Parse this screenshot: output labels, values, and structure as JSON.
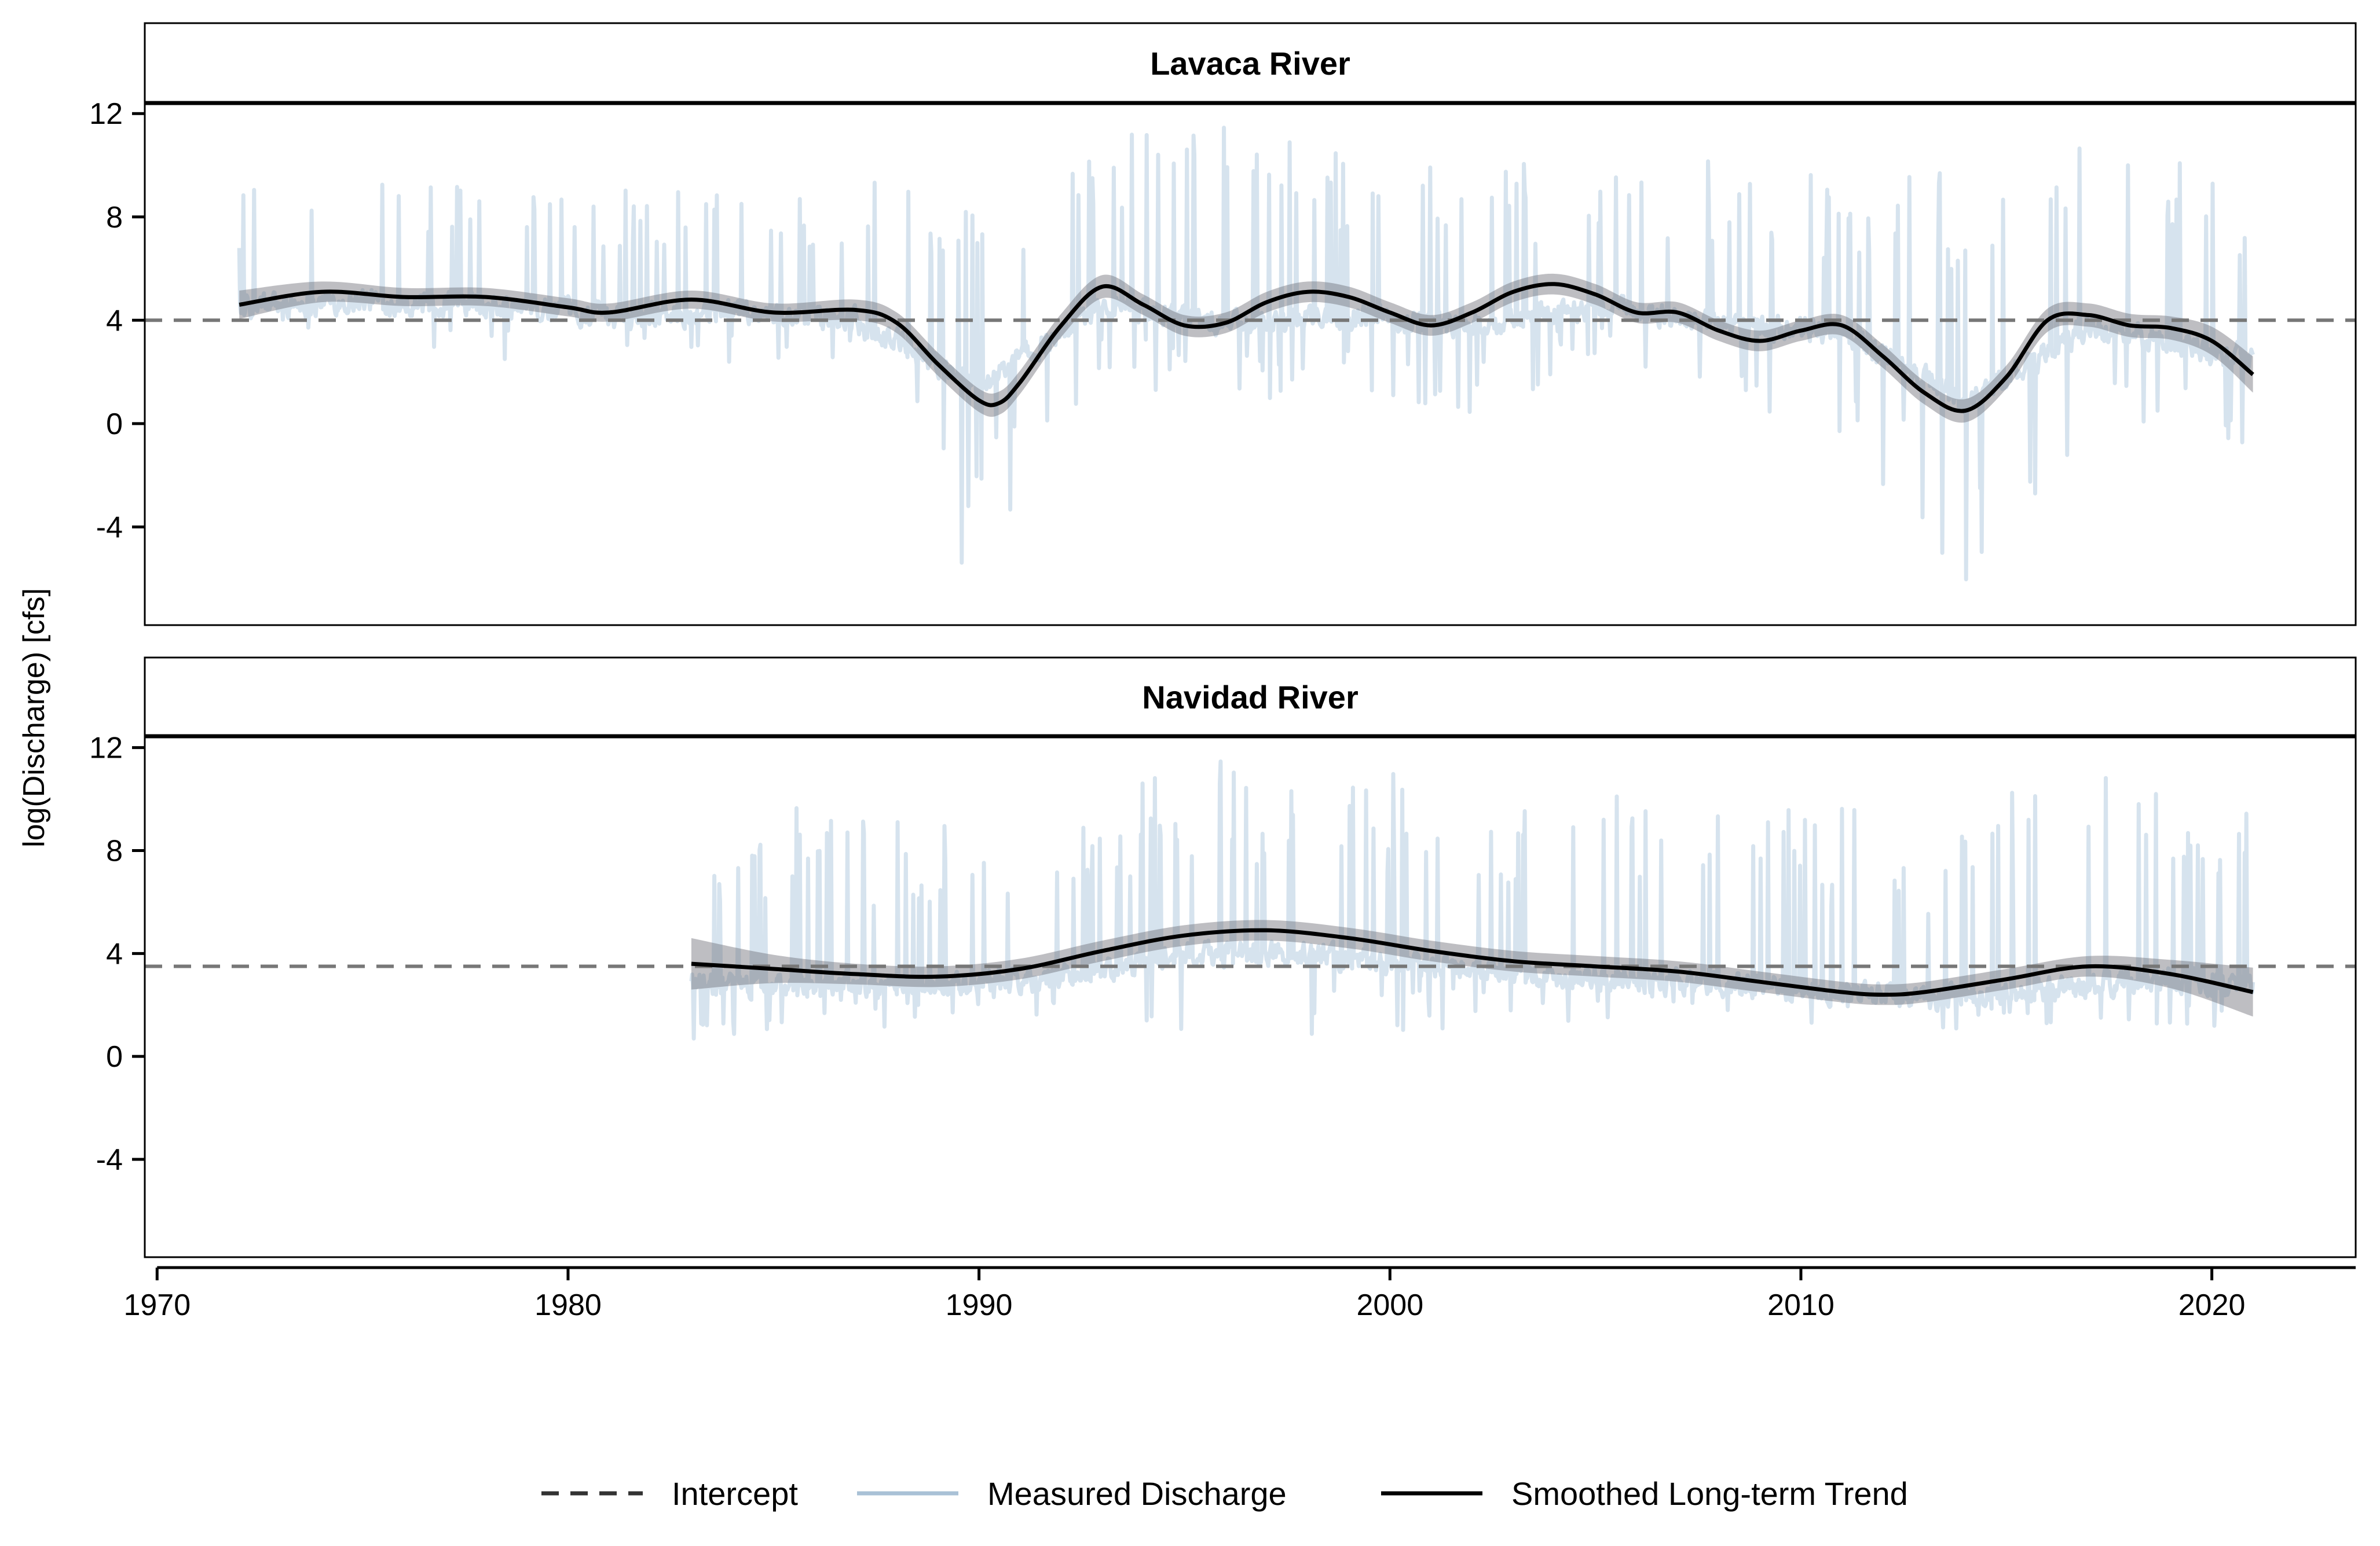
{
  "chart_data": {
    "type": "line",
    "ylabel": "log(Discharge) [cfs]",
    "xlabel": "",
    "xlim": [
      1969.7,
      2023.5
    ],
    "ylim": [
      -7.8,
      15.5
    ],
    "x_ticks": [
      1970,
      1980,
      1990,
      2000,
      2010,
      2020
    ],
    "x_tick_labels": [
      "1970",
      "1980",
      "1990",
      "2000",
      "2010",
      "2020"
    ],
    "y_ticks": [
      -4,
      0,
      4,
      8,
      12
    ],
    "y_tick_labels": [
      "-4",
      "0",
      "4",
      "8",
      "12"
    ],
    "grid": false,
    "legend": {
      "position": "bottom",
      "entries": [
        {
          "label": "Intercept",
          "style": "dashed",
          "color": "#333333"
        },
        {
          "label": "Measured Discharge",
          "style": "solid",
          "color": "#a9c1d6"
        },
        {
          "label": "Smoothed Long-term Trend",
          "style": "solid",
          "color": "#000000"
        }
      ]
    },
    "colors": {
      "measured": "#d6e3ee",
      "trend": "#000000",
      "band": "#6e6e78",
      "intercept": "#777777"
    },
    "panels": [
      {
        "title": "Lavaca River",
        "intercept": 4.0,
        "measured": {
          "x": [
            1972,
            1975,
            1978,
            1981,
            1984,
            1987,
            1990,
            1993,
            1996,
            1999,
            2002,
            2005,
            2008,
            2011,
            2014,
            2017,
            2021
          ],
          "median": [
            4.5,
            4.8,
            4.5,
            4.2,
            4.4,
            3.9,
            1.5,
            4.6,
            3.8,
            4.2,
            3.8,
            4.6,
            3.8,
            3.5,
            0.8,
            3.7,
            2.5
          ],
          "max": [
            9.5,
            10.9,
            9.8,
            9.7,
            9.8,
            9.5,
            8.5,
            11.3,
            11.8,
            10.5,
            10.1,
            10.3,
            10.3,
            9.6,
            10.8,
            11.2,
            9.7
          ],
          "min": [
            3.4,
            3.4,
            2.2,
            2.8,
            2.3,
            2.2,
            -6.9,
            1.5,
            0.8,
            1.2,
            0.0,
            2.6,
            1.0,
            -1.2,
            -6.9,
            -0.8,
            -1.3
          ]
        },
        "trend": {
          "x": [
            1972,
            1974,
            1976,
            1978,
            1980,
            1981,
            1983,
            1985,
            1987,
            1988,
            1989,
            1990,
            1990.5,
            1991,
            1992,
            1993,
            1994,
            1995,
            1996,
            1997,
            1998,
            1999,
            2000,
            2001,
            2002,
            2003,
            2004,
            2005,
            2006,
            2007,
            2008,
            2009,
            2010,
            2011,
            2012,
            2013,
            2014,
            2015,
            2016,
            2017,
            2018,
            2019,
            2020,
            2021
          ],
          "y": [
            4.6,
            5.1,
            4.9,
            4.9,
            4.5,
            4.3,
            4.8,
            4.3,
            4.4,
            3.9,
            2.3,
            0.9,
            0.8,
            1.6,
            3.8,
            5.3,
            4.6,
            3.8,
            3.9,
            4.7,
            5.1,
            4.9,
            4.3,
            3.8,
            4.3,
            5.1,
            5.4,
            5.0,
            4.3,
            4.3,
            3.6,
            3.2,
            3.6,
            3.8,
            2.6,
            1.2,
            0.5,
            1.8,
            4.0,
            4.2,
            3.8,
            3.7,
            3.2,
            1.9
          ],
          "ci": [
            0.55,
            0.4,
            0.35,
            0.35,
            0.35,
            0.35,
            0.35,
            0.35,
            0.4,
            0.4,
            0.45,
            0.45,
            0.45,
            0.45,
            0.45,
            0.45,
            0.4,
            0.4,
            0.4,
            0.4,
            0.4,
            0.4,
            0.4,
            0.4,
            0.4,
            0.4,
            0.4,
            0.4,
            0.4,
            0.4,
            0.4,
            0.4,
            0.4,
            0.4,
            0.45,
            0.45,
            0.45,
            0.45,
            0.45,
            0.45,
            0.45,
            0.45,
            0.55,
            0.7
          ]
        }
      },
      {
        "title": "Navidad River",
        "intercept": 3.5,
        "measured": {
          "x": [
            1983,
            1986,
            1989,
            1992,
            1995,
            1998,
            2001,
            2004,
            2007,
            2010,
            2013,
            2016,
            2019,
            2021
          ],
          "median": [
            2.8,
            2.7,
            2.8,
            3.1,
            4.0,
            3.9,
            3.6,
            3.1,
            2.9,
            2.6,
            2.2,
            2.6,
            3.0,
            2.8
          ],
          "max": [
            9.8,
            9.8,
            9.2,
            9.8,
            11.6,
            11.3,
            11.0,
            10.5,
            10.4,
            9.9,
            9.2,
            11.1,
            10.6,
            9.8
          ],
          "min": [
            0.5,
            1.1,
            1.2,
            1.4,
            0.4,
            0.4,
            0.9,
            0.9,
            0.9,
            1.1,
            1.0,
            1.1,
            1.1,
            1.1
          ]
        },
        "trend": {
          "x": [
            1983,
            1985,
            1987,
            1989,
            1991,
            1993,
            1995,
            1997,
            1999,
            2001,
            2003,
            2005,
            2007,
            2009,
            2011,
            2012,
            2013,
            2015,
            2017,
            2019,
            2021
          ],
          "y": [
            3.6,
            3.4,
            3.2,
            3.1,
            3.4,
            4.1,
            4.7,
            4.9,
            4.6,
            4.1,
            3.7,
            3.5,
            3.3,
            2.9,
            2.5,
            2.4,
            2.5,
            3.0,
            3.5,
            3.2,
            2.5
          ],
          "ci": [
            1.0,
            0.55,
            0.4,
            0.4,
            0.4,
            0.4,
            0.4,
            0.4,
            0.4,
            0.4,
            0.4,
            0.4,
            0.4,
            0.4,
            0.4,
            0.4,
            0.4,
            0.4,
            0.4,
            0.55,
            0.95
          ]
        }
      }
    ]
  }
}
